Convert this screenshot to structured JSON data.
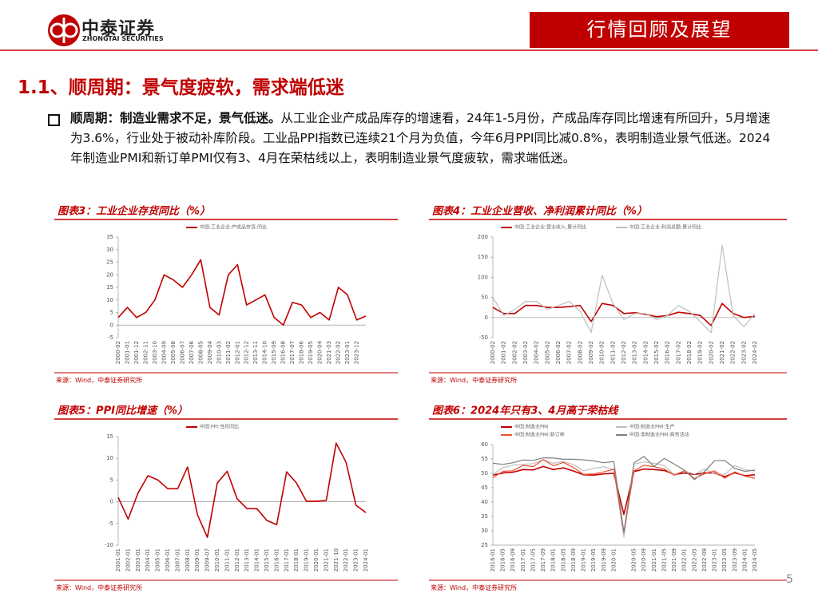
{
  "header": {
    "brand": "中泰证券",
    "brand_en": "ZHONGTAI SECURITIES",
    "section": "行情回顾及展望"
  },
  "title": "1.1、顺周期：景气度疲软，需求端低迷",
  "bullet": {
    "lead": "顺周期：制造业需求不足，景气低迷。",
    "text": "从工业企业产成品库存的增速看，24年1-5月份，产成品库存同比增速有所回升，5月增速为3.6%，行业处于被动补库阶段。工业品PPI指数已连续21个月为负值，今年6月PPI同比减0.8%，表明制造业景气低迷。2024年制造业PMI和新订单PMI仅有3、4月在荣枯线以上，表明制造业景气度疲软，需求端低迷。"
  },
  "page_number": "5",
  "chart_data": [
    {
      "type": "line",
      "title": "图表3：工业企业存货同比（%）",
      "source": "来源：Wind，中泰证券研究所",
      "categories": [
        "2000-02",
        "2001-01",
        "2001-12",
        "2002-11",
        "2003-10",
        "2004-09",
        "2005-08",
        "2006-07",
        "2007-06",
        "2008-05",
        "2009-04",
        "2010-03",
        "2011-02",
        "2012-01",
        "2012-12",
        "2013-11",
        "2014-10",
        "2015-09",
        "2016-08",
        "2017-07",
        "2018-06",
        "2019-05",
        "2020-04",
        "2021-03",
        "2022-02",
        "2023-01",
        "2023-12",
        null
      ],
      "series": [
        {
          "name": "中国:工业企业:产成品存货:同比",
          "color": "#c00000",
          "values": [
            3,
            7,
            3,
            5,
            10,
            20,
            18,
            15,
            20,
            26,
            7,
            4,
            20,
            24,
            8,
            10,
            12,
            3,
            0,
            9,
            8,
            3,
            5,
            2,
            15,
            12,
            2,
            3.6
          ]
        }
      ],
      "ylim": [
        -5,
        35
      ],
      "yticks": [
        -5,
        0,
        5,
        10,
        15,
        20,
        25,
        30,
        35
      ]
    },
    {
      "type": "line",
      "title": "图表4：工业企业营收、净利润累计同比（%）",
      "source": "来源：Wind，中泰证券研究所",
      "categories": [
        "2000-02",
        "2001-02",
        "2002-02",
        "2003-02",
        "2004-02",
        "2005-02",
        "2006-02",
        "2007-02",
        "2008-02",
        "2009-02",
        "2010-02",
        "2011-02",
        "2012-02",
        "2013-02",
        "2014-02",
        "2015-02",
        "2016-02",
        "2017-02",
        "2018-02",
        "2019-02",
        "2020-02",
        "2021-02",
        "2022-02",
        "2023-02",
        "2024-02"
      ],
      "series": [
        {
          "name": "中国:工业企业:营业收入:累计同比",
          "color": "#c00000",
          "values": [
            25,
            10,
            10,
            30,
            30,
            25,
            25,
            27,
            30,
            -10,
            35,
            30,
            10,
            12,
            8,
            2,
            5,
            13,
            10,
            5,
            -20,
            35,
            10,
            0,
            3
          ]
        },
        {
          "name": "中国:工业企业:利润总额:累计同比",
          "color": "#bfbfbf",
          "values": [
            50,
            5,
            20,
            40,
            40,
            20,
            30,
            40,
            15,
            -37,
            105,
            35,
            -5,
            10,
            10,
            -5,
            5,
            30,
            15,
            -10,
            -38,
            180,
            5,
            -23,
            10
          ]
        }
      ],
      "ylim": [
        -50,
        200
      ],
      "yticks": [
        -50,
        0,
        50,
        100,
        150,
        200
      ]
    },
    {
      "type": "line",
      "title": "图表5：PPI同比增速（%）",
      "source": "来源：Wind，中泰证券研究所",
      "categories": [
        "2001-01",
        "2002-01",
        "2003-01",
        "2004-01",
        "2005-01",
        "2006-01",
        "2007-01",
        "2008-01",
        "2009-01",
        "2009-07",
        "2010-01",
        "2011-01",
        "2012-01",
        "2013-01",
        "2014-01",
        "2015-01",
        "2016-01",
        "2017-01",
        "2018-01",
        "2019-01",
        "2020-01",
        "2021-01",
        "2021-10",
        "2022-01",
        "2023-01",
        "2024-01"
      ],
      "series": [
        {
          "name": "中国:PPI:当月同比",
          "color": "#c00000",
          "values": [
            1,
            -4,
            2,
            6,
            5,
            3,
            3,
            8,
            -3,
            -8.2,
            4.3,
            7,
            0.7,
            -1.6,
            -1.6,
            -4.3,
            -5.3,
            6.9,
            4.3,
            0.1,
            0.1,
            0.3,
            13.5,
            9.1,
            -0.8,
            -2.5
          ]
        }
      ],
      "ylim": [
        -10,
        15
      ],
      "yticks": [
        -10,
        -5,
        0,
        5,
        10,
        15
      ]
    },
    {
      "type": "line",
      "title": "图表6：2024年只有3、4月高于荣枯线",
      "source": "来源：Wind，中泰证券研究所",
      "categories": [
        "2016-01",
        "2016-05",
        "2016-09",
        "2017-01",
        "2017-05",
        "2017-09",
        "2018-01",
        "2018-05",
        "2018-09",
        "2019-01",
        "2019-05",
        "2019-09",
        "2020-01",
        null,
        "2020-05",
        "2020-09",
        "2021-01",
        "2021-05",
        "2021-09",
        "2022-01",
        "2022-05",
        "2022-09",
        "2023-01",
        "2023-05",
        "2023-09",
        "2024-01",
        "2024-05"
      ],
      "series": [
        {
          "name": "中国:制造业PMI",
          "color": "#c00000",
          "values": [
            49.4,
            50.1,
            50.4,
            51.3,
            51.2,
            52.4,
            51.3,
            51.9,
            50.8,
            49.5,
            49.4,
            49.8,
            50,
            35.7,
            50.6,
            51.5,
            51.3,
            51,
            49.6,
            50.1,
            49.6,
            50.1,
            50.1,
            48.8,
            50.2,
            49.2,
            49.5
          ]
        },
        {
          "name": "中国:制造业PMI:生产",
          "color": "#bfbfbf",
          "values": [
            49.6,
            52,
            52.8,
            53.1,
            53.4,
            54.7,
            53.5,
            54.1,
            53,
            50.9,
            51.7,
            52.3,
            51.3,
            27.8,
            53.2,
            54,
            53.5,
            52.7,
            49.5,
            50.9,
            49.7,
            51.5,
            49.8,
            49.6,
            52.7,
            51.3,
            50.8
          ]
        },
        {
          "name": "中国:制造业PMI:新订单",
          "color": "#f0502a",
          "values": [
            48.4,
            50.7,
            50.9,
            52.8,
            52.3,
            54.8,
            52.6,
            53.8,
            52,
            49.6,
            49.8,
            50.5,
            51.4,
            29.3,
            50.9,
            52.8,
            52.3,
            51.5,
            49.3,
            50.9,
            48.2,
            49.8,
            50.9,
            48.3,
            50.5,
            49,
            48.3
          ]
        },
        {
          "name": "中国:非制造业PMI:商务活动",
          "color": "#7f7f7f",
          "values": [
            53.5,
            53.1,
            53.7,
            54.6,
            54.5,
            55.4,
            55.3,
            54.9,
            54.9,
            54.7,
            54.3,
            53.7,
            54.1,
            29.6,
            53.6,
            55.9,
            52.4,
            55.2,
            53.2,
            51.1,
            47.8,
            50.6,
            54.4,
            54.5,
            51.7,
            50.7,
            51.1
          ]
        }
      ],
      "ylim": [
        25,
        60
      ],
      "yticks": [
        25,
        30,
        35,
        40,
        45,
        50,
        55,
        60
      ]
    }
  ]
}
